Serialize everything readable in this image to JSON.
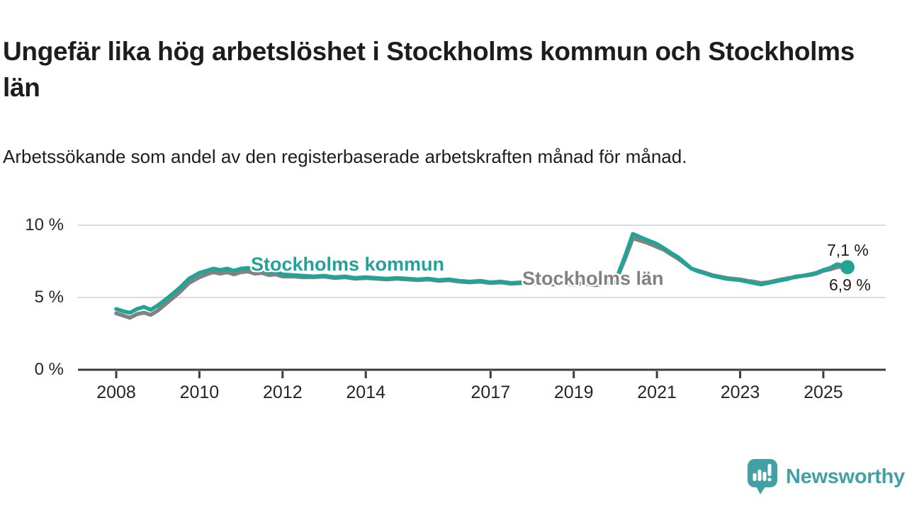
{
  "header": {
    "title": "Ungefär lika hög arbetslöshet i Stockholms kommun och Stockholms län",
    "subtitle": "Arbetssökande som andel av den registerbaserade arbetskraften månad för månad."
  },
  "chart_data": {
    "type": "line",
    "title": "Ungefär lika hög arbetslöshet i Stockholms kommun och Stockholms län",
    "subtitle": "Arbetssökande som andel av den registerbaserade arbetskraften månad för månad.",
    "unit": "%",
    "grid": "horizontal-only",
    "legend_position": "inline-labels-on-lines",
    "ylim": [
      0,
      11
    ],
    "x_range": [
      2008.0,
      2025.58
    ],
    "y_ticks": [
      {
        "value": 0,
        "label": "0 %"
      },
      {
        "value": 5,
        "label": "5 %"
      },
      {
        "value": 10,
        "label": "10 %"
      }
    ],
    "x_ticks": [
      {
        "value": 2008,
        "label": "2008"
      },
      {
        "value": 2010,
        "label": "2010"
      },
      {
        "value": 2012,
        "label": "2012"
      },
      {
        "value": 2014,
        "label": "2014"
      },
      {
        "value": 2017,
        "label": "2017"
      },
      {
        "value": 2019,
        "label": "2019"
      },
      {
        "value": 2021,
        "label": "2021"
      },
      {
        "value": 2023,
        "label": "2023"
      },
      {
        "value": 2025,
        "label": "2025"
      }
    ],
    "x": [
      2008.0,
      2008.17,
      2008.33,
      2008.5,
      2008.67,
      2008.83,
      2009.0,
      2009.25,
      2009.5,
      2009.75,
      2010.0,
      2010.17,
      2010.33,
      2010.5,
      2010.67,
      2010.83,
      2011.0,
      2011.17,
      2011.33,
      2011.5,
      2011.67,
      2011.83,
      2012.0,
      2012.25,
      2012.5,
      2012.75,
      2013.0,
      2013.25,
      2013.5,
      2013.75,
      2014.0,
      2014.25,
      2014.5,
      2014.75,
      2015.0,
      2015.25,
      2015.5,
      2015.75,
      2016.0,
      2016.25,
      2016.5,
      2016.75,
      2017.0,
      2017.25,
      2017.5,
      2017.75,
      2018.0,
      2018.25,
      2018.5,
      2018.75,
      2019.0,
      2019.25,
      2019.5,
      2019.75,
      2020.0,
      2020.25,
      2020.42,
      2020.58,
      2020.75,
      2020.92,
      2021.0,
      2021.17,
      2021.33,
      2021.5,
      2021.67,
      2021.83,
      2022.0,
      2022.17,
      2022.33,
      2022.5,
      2022.67,
      2022.83,
      2023.0,
      2023.17,
      2023.33,
      2023.5,
      2023.67,
      2023.83,
      2024.0,
      2024.17,
      2024.33,
      2024.5,
      2024.67,
      2024.83,
      2025.0,
      2025.17,
      2025.33,
      2025.5,
      2025.58
    ],
    "series": [
      {
        "name": "Stockholms kommun",
        "color": "#22a396",
        "end_label": "7,1 %",
        "end_value": 7.1,
        "values": [
          4.2,
          4.05,
          3.95,
          4.2,
          4.35,
          4.15,
          4.45,
          5.0,
          5.6,
          6.3,
          6.7,
          6.85,
          7.0,
          6.9,
          7.0,
          6.85,
          7.0,
          7.05,
          6.9,
          6.95,
          6.75,
          6.8,
          6.6,
          6.55,
          6.5,
          6.45,
          6.5,
          6.4,
          6.45,
          6.35,
          6.4,
          6.35,
          6.3,
          6.35,
          6.3,
          6.25,
          6.3,
          6.2,
          6.25,
          6.15,
          6.1,
          6.15,
          6.05,
          6.1,
          6.0,
          6.05,
          6.0,
          6.05,
          5.95,
          6.0,
          5.95,
          6.0,
          5.9,
          6.0,
          6.1,
          8.0,
          9.4,
          9.2,
          9.0,
          8.8,
          8.7,
          8.4,
          8.1,
          7.8,
          7.4,
          7.0,
          6.8,
          6.65,
          6.5,
          6.4,
          6.3,
          6.25,
          6.2,
          6.1,
          6.0,
          5.9,
          6.0,
          6.1,
          6.2,
          6.3,
          6.45,
          6.5,
          6.6,
          6.7,
          6.9,
          7.05,
          7.3,
          7.2,
          7.1
        ]
      },
      {
        "name": "Stockholms län",
        "color": "#828282",
        "end_label": "6,9 %",
        "end_value": 6.9,
        "values": [
          3.9,
          3.75,
          3.6,
          3.85,
          3.95,
          3.8,
          4.1,
          4.7,
          5.3,
          6.0,
          6.4,
          6.6,
          6.75,
          6.65,
          6.75,
          6.6,
          6.75,
          6.8,
          6.65,
          6.7,
          6.55,
          6.6,
          6.45,
          6.45,
          6.4,
          6.4,
          6.45,
          6.35,
          6.4,
          6.3,
          6.35,
          6.3,
          6.25,
          6.3,
          6.25,
          6.2,
          6.25,
          6.15,
          6.2,
          6.1,
          6.05,
          6.1,
          6.0,
          6.05,
          5.95,
          6.0,
          5.95,
          6.0,
          5.9,
          5.95,
          5.9,
          5.95,
          5.85,
          5.95,
          6.05,
          7.8,
          9.1,
          8.95,
          8.8,
          8.6,
          8.5,
          8.3,
          8.0,
          7.7,
          7.35,
          7.0,
          6.85,
          6.7,
          6.55,
          6.45,
          6.35,
          6.3,
          6.25,
          6.15,
          6.1,
          6.0,
          6.05,
          6.15,
          6.25,
          6.35,
          6.4,
          6.5,
          6.55,
          6.65,
          6.85,
          6.95,
          7.1,
          7.15,
          6.9
        ]
      }
    ],
    "end_dot_series": "Stockholms kommun",
    "axis_color": "#3b3b3b",
    "gridline_color": "#dbdbdb"
  },
  "branding": {
    "logo_text": "Newsworthy",
    "logo_color": "#43a0a5",
    "logo_icon": "newsworthy-speech-bubble-bar-chart-icon"
  }
}
